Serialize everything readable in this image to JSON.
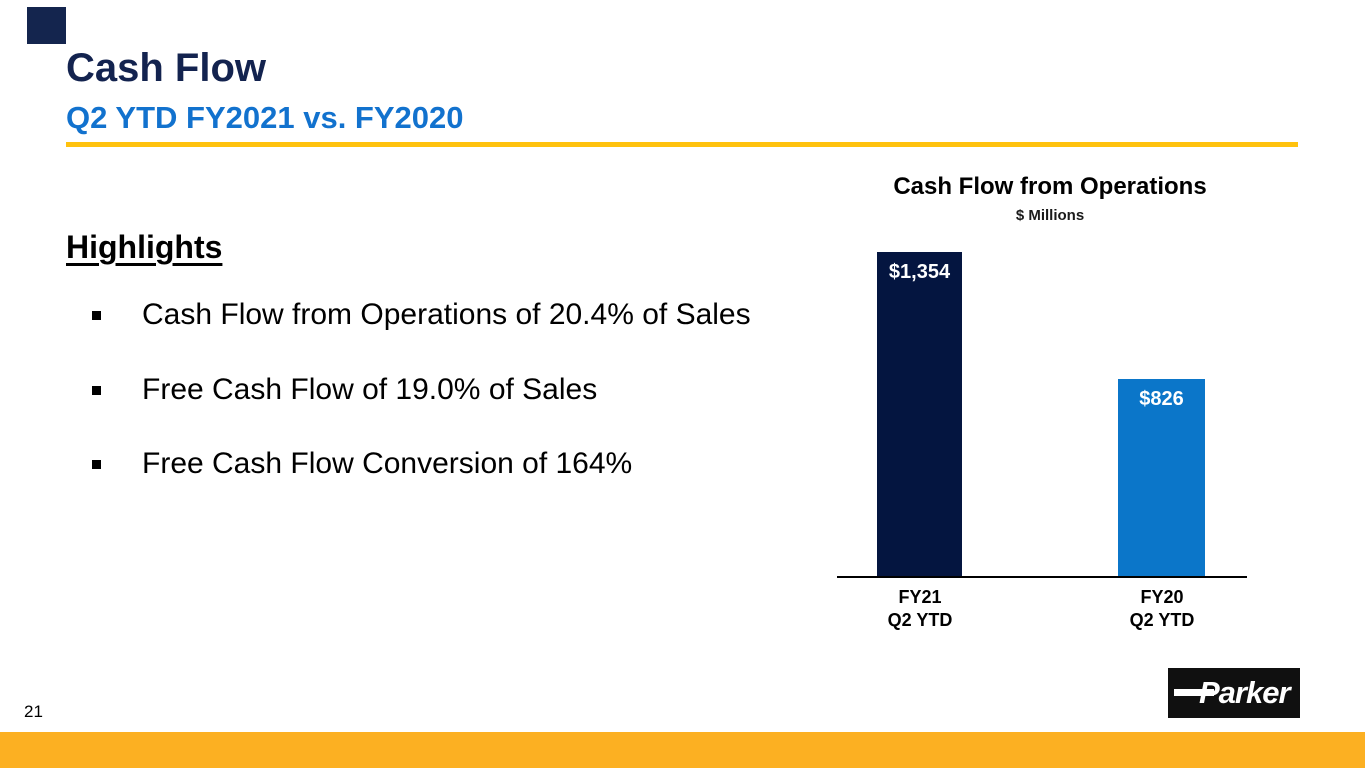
{
  "slide": {
    "title": "Cash Flow",
    "subtitle": "Q2 YTD FY2021 vs. FY2020",
    "page_number": "21",
    "logo_text": "Parker"
  },
  "highlights": {
    "heading": "Highlights",
    "bullets": [
      "Cash Flow from Operations of 20.4% of Sales",
      "Free Cash Flow of 19.0% of Sales",
      "Free Cash Flow Conversion of 164%"
    ]
  },
  "chart": {
    "title": "Cash Flow from Operations",
    "subtitle": "$ Millions",
    "bars": [
      {
        "category_line1": "FY21",
        "category_line2": "Q2 YTD",
        "label": "$1,354",
        "value": 1354,
        "color": "#041540"
      },
      {
        "category_line1": "FY20",
        "category_line2": "Q2 YTD",
        "label": "$826",
        "value": 826,
        "color": "#0B76C9"
      }
    ]
  },
  "chart_data": {
    "type": "bar",
    "title": "Cash Flow from Operations",
    "subtitle": "$ Millions",
    "categories": [
      "FY21 Q2 YTD",
      "FY20 Q2 YTD"
    ],
    "values": [
      1354,
      826
    ],
    "data_labels": [
      "$1,354",
      "$826"
    ],
    "bar_colors": [
      "#041540",
      "#0B76C9"
    ],
    "ylim": [
      0,
      1400
    ],
    "grid": false,
    "legend": false,
    "xlabel": "",
    "ylabel": ""
  },
  "colors": {
    "title_navy": "#13234F",
    "subtitle_blue": "#1272CE",
    "gold_rule": "#FFC20E",
    "bottom_bar_gold": "#FCB022",
    "bar_navy": "#041540",
    "bar_blue": "#0B76C9",
    "bar_label_white": "#FFFFFF",
    "text_black": "#000000",
    "logo_background": "#101010"
  }
}
